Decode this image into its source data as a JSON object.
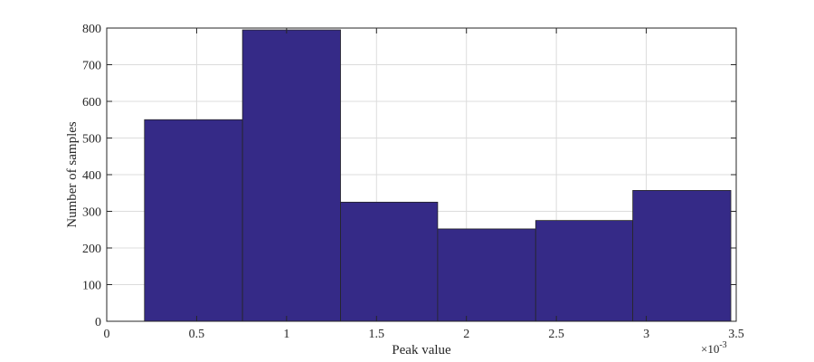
{
  "chart_data": {
    "type": "bar",
    "title": "",
    "xlabel": "Peak value",
    "ylabel": "Number of samples",
    "x_multiplier_base": "×10",
    "x_multiplier_exponent": "-3",
    "xlim": [
      0,
      3.5
    ],
    "ylim": [
      0,
      800
    ],
    "xticks": [
      0,
      0.5,
      1,
      1.5,
      2,
      2.5,
      3,
      3.5
    ],
    "xtick_labels": [
      "0",
      "0.5",
      "1",
      "1.5",
      "2",
      "2.5",
      "3",
      "3.5"
    ],
    "yticks": [
      0,
      100,
      200,
      300,
      400,
      500,
      600,
      700,
      800
    ],
    "ytick_labels": [
      "0",
      "100",
      "200",
      "300",
      "400",
      "500",
      "600",
      "700",
      "800"
    ],
    "grid": true,
    "bin_edges": [
      0.21,
      0.755,
      1.3,
      1.84,
      2.385,
      2.925,
      3.47
    ],
    "values": [
      550,
      795,
      325,
      252,
      275,
      357
    ],
    "colors": {
      "bar": "#352a87",
      "bar_edge": "#262626",
      "axis": "#262626",
      "grid": "#dcdcdc"
    }
  }
}
